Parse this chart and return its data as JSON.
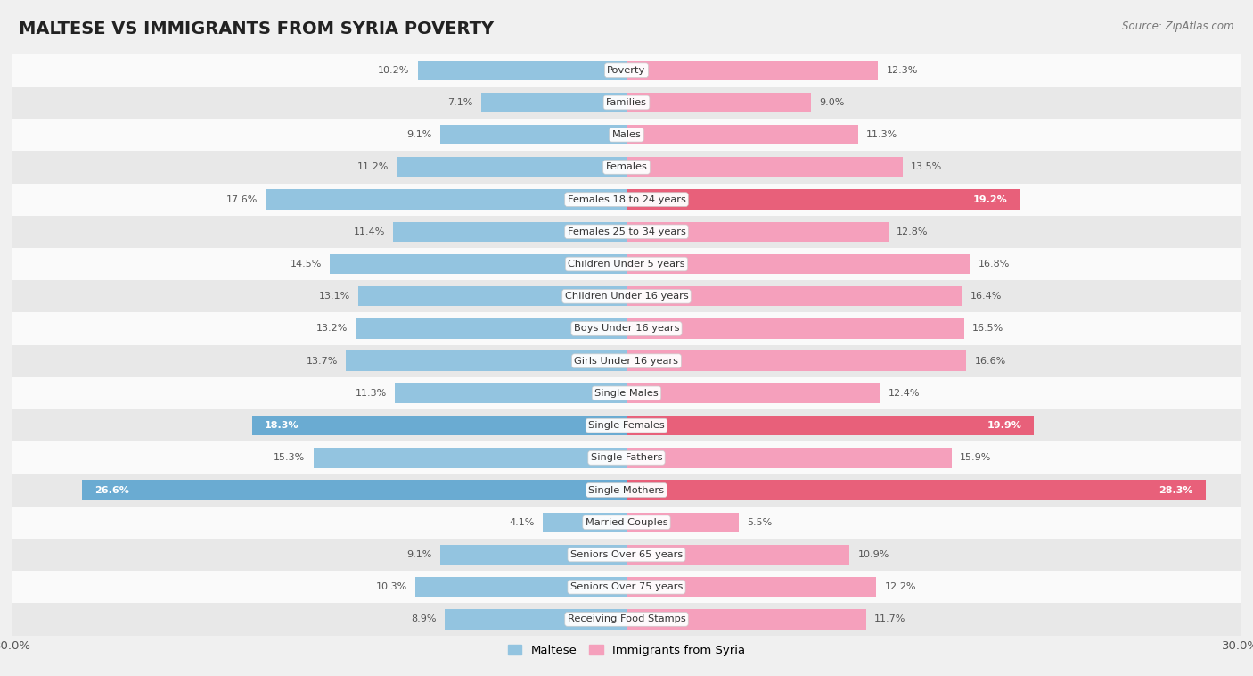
{
  "title": "MALTESE VS IMMIGRANTS FROM SYRIA POVERTY",
  "source": "Source: ZipAtlas.com",
  "categories": [
    "Poverty",
    "Families",
    "Males",
    "Females",
    "Females 18 to 24 years",
    "Females 25 to 34 years",
    "Children Under 5 years",
    "Children Under 16 years",
    "Boys Under 16 years",
    "Girls Under 16 years",
    "Single Males",
    "Single Females",
    "Single Fathers",
    "Single Mothers",
    "Married Couples",
    "Seniors Over 65 years",
    "Seniors Over 75 years",
    "Receiving Food Stamps"
  ],
  "maltese": [
    10.2,
    7.1,
    9.1,
    11.2,
    17.6,
    11.4,
    14.5,
    13.1,
    13.2,
    13.7,
    11.3,
    18.3,
    15.3,
    26.6,
    4.1,
    9.1,
    10.3,
    8.9
  ],
  "syria": [
    12.3,
    9.0,
    11.3,
    13.5,
    19.2,
    12.8,
    16.8,
    16.4,
    16.5,
    16.6,
    12.4,
    19.9,
    15.9,
    28.3,
    5.5,
    10.9,
    12.2,
    11.7
  ],
  "maltese_color": "#93c4e0",
  "syria_color": "#f5a0bc",
  "maltese_highlight_indices": [
    11,
    13
  ],
  "syria_highlight_indices": [
    4,
    11,
    13
  ],
  "highlight_blue": "#6aabd2",
  "highlight_pink": "#e8607a",
  "xlim": 30.0,
  "bar_height": 0.62,
  "background_color": "#f0f0f0",
  "row_color_light": "#fafafa",
  "row_color_dark": "#e8e8e8",
  "legend_maltese": "Maltese",
  "legend_syria": "Immigrants from Syria",
  "title_fontsize": 14,
  "label_fontsize": 8.2,
  "value_fontsize": 8.0,
  "axis_label_fontsize": 9.5
}
